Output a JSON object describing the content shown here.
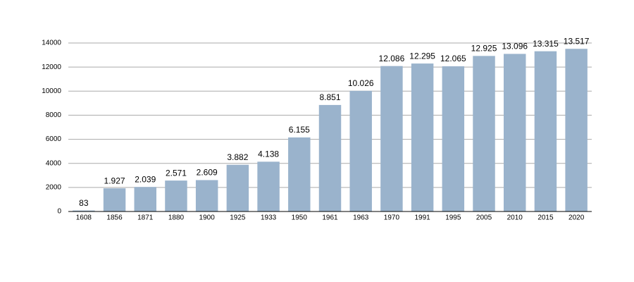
{
  "chart_data": {
    "type": "bar",
    "categories": [
      "1608",
      "1856",
      "1871",
      "1880",
      "1900",
      "1925",
      "1933",
      "1950",
      "1961",
      "1963",
      "1970",
      "1991",
      "1995",
      "2005",
      "2010",
      "2015",
      "2020"
    ],
    "values": [
      83,
      1927,
      2039,
      2571,
      2609,
      3882,
      4138,
      6155,
      8851,
      10026,
      12086,
      12295,
      12065,
      12925,
      13096,
      13315,
      13517
    ],
    "value_labels": [
      "83",
      "1.927",
      "2.039",
      "2.571",
      "2.609",
      "3.882",
      "4.138",
      "6.155",
      "8.851",
      "10.026",
      "12.086",
      "12.295",
      "12.065",
      "12.925",
      "13.096",
      "13.315",
      "13.517"
    ],
    "color": "#9ab3cc",
    "ylim": [
      0,
      14000
    ],
    "yticks": [
      0,
      2000,
      4000,
      6000,
      8000,
      10000,
      12000,
      14000
    ],
    "grid": true
  }
}
